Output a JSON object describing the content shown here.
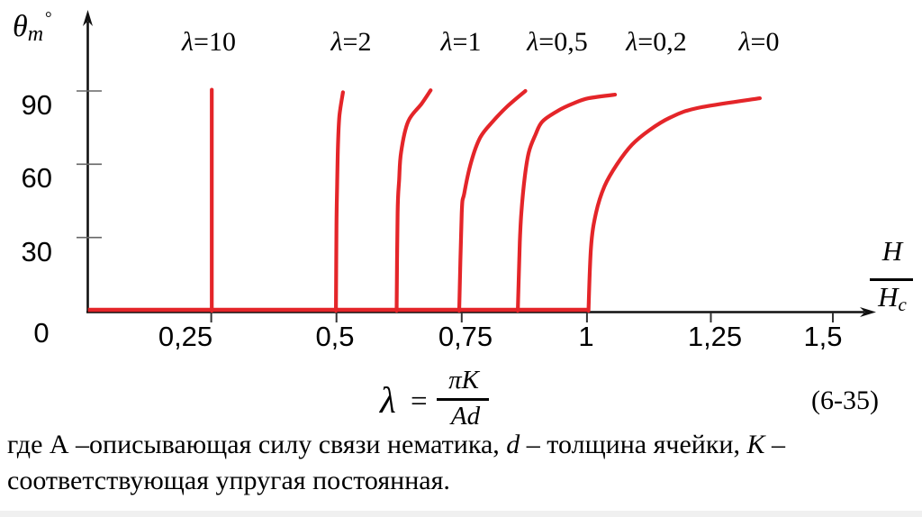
{
  "slide": {
    "y_axis_label": {
      "sym": "θ",
      "sub": "m",
      "deg": "°"
    },
    "x_axis_label": {
      "num": "H",
      "den": "H",
      "den_sub": "c"
    },
    "curve_labels": [
      {
        "sym": "λ",
        "rest": "=10"
      },
      {
        "sym": "λ",
        "rest": "=2"
      },
      {
        "sym": "λ",
        "rest": "=1"
      },
      {
        "sym": "λ",
        "rest": "=0,5"
      },
      {
        "sym": "λ",
        "rest": "=0,2"
      },
      {
        "sym": "λ",
        "rest": "=0"
      }
    ],
    "y_tick_labels": [
      "90",
      "60",
      "30"
    ],
    "origin_label": "0",
    "x_tick_labels": [
      "0,25",
      "0,5",
      "0,75",
      "1",
      "1,25",
      "1,5"
    ],
    "equation": {
      "lhs": "λ",
      "eq": "=",
      "num": "πK",
      "den": "Ad",
      "number": "(6-35)"
    },
    "caption_line1": [
      {
        "t": "где А –описывающая силу связи нематика, ",
        "i": false
      },
      {
        "t": "d",
        "i": true
      },
      {
        "t": " – толщина ячейки, ",
        "i": false
      },
      {
        "t": "K",
        "i": true
      },
      {
        "t": " –",
        "i": false
      }
    ],
    "caption_line2": [
      {
        "t": "соответствующая упругая постоянная.",
        "i": false
      }
    ]
  },
  "chart_data": {
    "type": "line",
    "xlabel": "H/Hc",
    "ylabel": "θm (degrees)",
    "xlim": [
      0,
      1.58
    ],
    "ylim": [
      0,
      100
    ],
    "x_ticks": [
      0.25,
      0.5,
      0.75,
      1.0,
      1.25,
      1.5
    ],
    "y_ticks": [
      0,
      30,
      60,
      90
    ],
    "grid": false,
    "legend_position": "labels-above-curves",
    "color": "#e42529",
    "baseline": [
      0.004,
      1.003
    ],
    "series": [
      {
        "name": "λ=10",
        "threshold": 0.25,
        "points": [
          [
            0.251,
            0
          ],
          [
            0.251,
            90.5
          ]
        ]
      },
      {
        "name": "λ=2",
        "threshold": 0.5,
        "points": [
          [
            0.499,
            0
          ],
          [
            0.5,
            35
          ],
          [
            0.5015,
            53
          ],
          [
            0.503,
            68
          ],
          [
            0.506,
            80
          ],
          [
            0.513,
            89.5
          ]
        ]
      },
      {
        "name": "λ=1",
        "threshold": 0.62,
        "points": [
          [
            0.62,
            0
          ],
          [
            0.622,
            40
          ],
          [
            0.625,
            53.5
          ],
          [
            0.629,
            65
          ],
          [
            0.643,
            77.5
          ],
          [
            0.67,
            84.8
          ],
          [
            0.688,
            90.3
          ]
        ]
      },
      {
        "name": "λ=0,5",
        "threshold": 0.745,
        "points": [
          [
            0.745,
            0
          ],
          [
            0.75,
            40
          ],
          [
            0.755,
            48
          ],
          [
            0.769,
            61
          ],
          [
            0.787,
            71
          ],
          [
            0.812,
            77.5
          ],
          [
            0.841,
            83.7
          ],
          [
            0.877,
            90
          ]
        ]
      },
      {
        "name": "λ=0,2",
        "threshold": 0.862,
        "points": [
          [
            0.862,
            0
          ],
          [
            0.866,
            28
          ],
          [
            0.869,
            40
          ],
          [
            0.876,
            55
          ],
          [
            0.884,
            65
          ],
          [
            0.897,
            72
          ],
          [
            0.911,
            77.5
          ],
          [
            0.943,
            82
          ],
          [
            0.974,
            85
          ],
          [
            1.003,
            87
          ],
          [
            1.056,
            88.5
          ]
        ]
      },
      {
        "name": "λ=0",
        "threshold": 1.0,
        "points": [
          [
            1.003,
            0
          ],
          [
            1.008,
            26
          ],
          [
            1.018,
            40
          ],
          [
            1.035,
            51
          ],
          [
            1.06,
            60
          ],
          [
            1.09,
            68
          ],
          [
            1.125,
            74
          ],
          [
            1.165,
            79
          ],
          [
            1.22,
            83
          ],
          [
            1.345,
            87
          ]
        ]
      }
    ]
  }
}
